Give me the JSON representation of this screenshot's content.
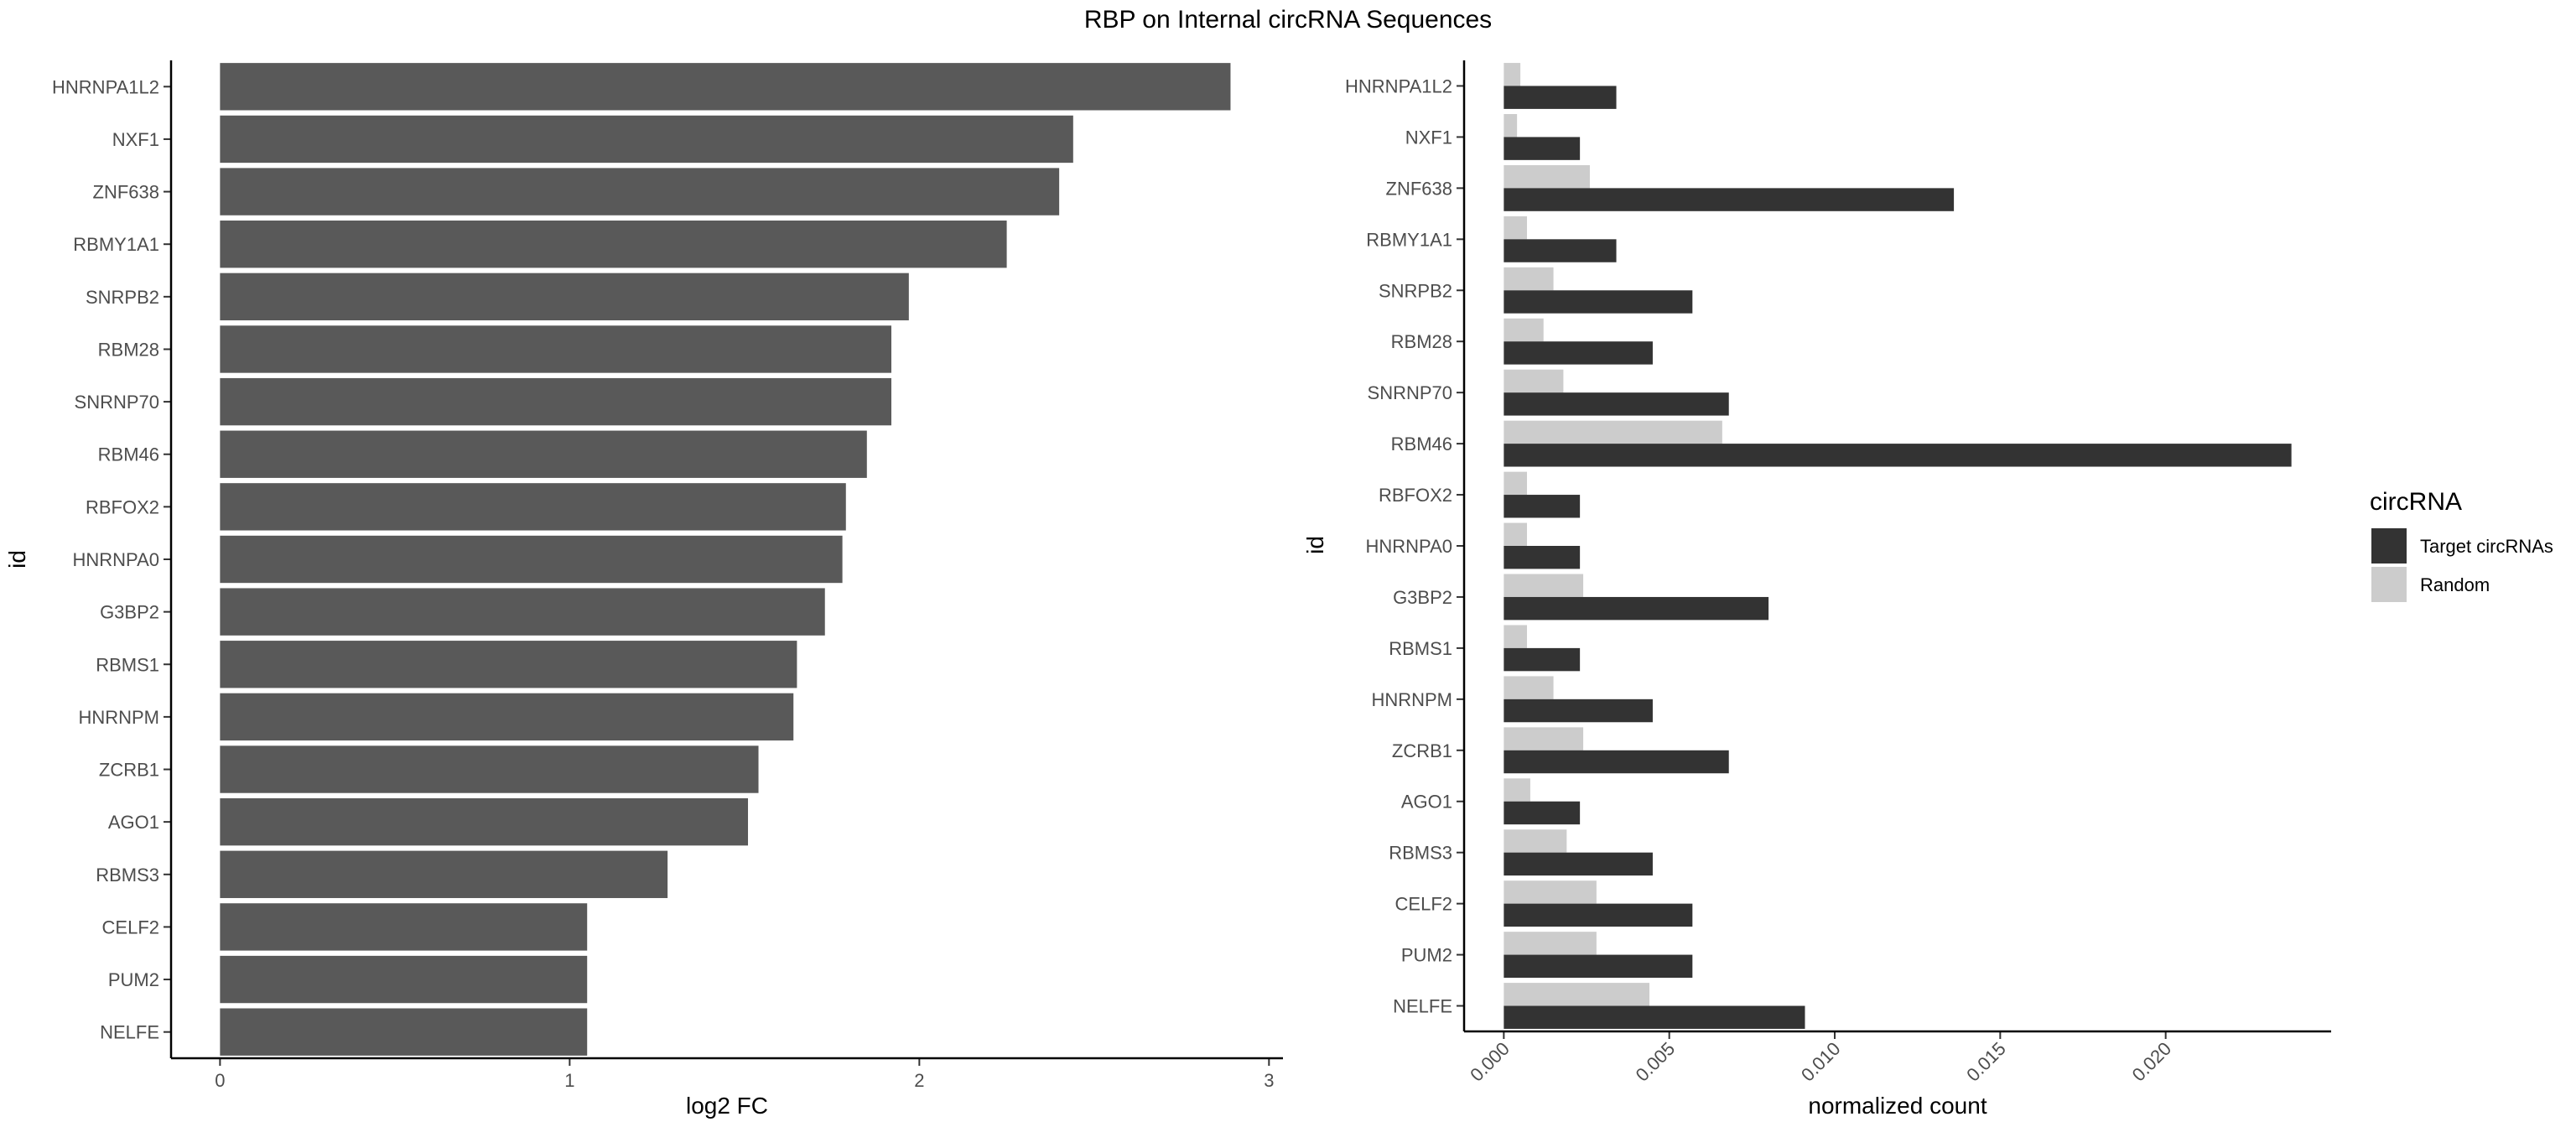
{
  "title": "RBP on Internal circRNA Sequences",
  "chart_data": [
    {
      "type": "bar",
      "orientation": "horizontal",
      "categories": [
        "HNRNPA1L2",
        "NXF1",
        "ZNF638",
        "RBMY1A1",
        "SNRPB2",
        "RBM28",
        "SNRNP70",
        "RBM46",
        "RBFOX2",
        "HNRNPA0",
        "G3BP2",
        "RBMS1",
        "HNRNPM",
        "ZCRB1",
        "AGO1",
        "RBMS3",
        "CELF2",
        "PUM2",
        "NELFE"
      ],
      "values": [
        2.89,
        2.44,
        2.4,
        2.25,
        1.97,
        1.92,
        1.92,
        1.85,
        1.79,
        1.78,
        1.73,
        1.65,
        1.64,
        1.54,
        1.51,
        1.28,
        1.05,
        1.05,
        1.05
      ],
      "xlabel": "log2 FC",
      "ylabel": "id",
      "xlim": [
        -0.14,
        3.04
      ],
      "xticks": [
        "0",
        "1",
        "2",
        "3"
      ],
      "bar_color": "#595959",
      "grid": false
    },
    {
      "type": "bar",
      "orientation": "horizontal",
      "position": "dodge",
      "categories": [
        "HNRNPA1L2",
        "NXF1",
        "ZNF638",
        "RBMY1A1",
        "SNRPB2",
        "RBM28",
        "SNRNP70",
        "RBM46",
        "RBFOX2",
        "HNRNPA0",
        "G3BP2",
        "RBMS1",
        "HNRNPM",
        "ZCRB1",
        "AGO1",
        "RBMS3",
        "CELF2",
        "PUM2",
        "NELFE"
      ],
      "series": [
        {
          "name": "Target circRNAs",
          "color": "#333333",
          "values": [
            0.0034,
            0.0023,
            0.0136,
            0.0034,
            0.0057,
            0.0045,
            0.0068,
            0.0238,
            0.0023,
            0.0023,
            0.008,
            0.0023,
            0.0045,
            0.0068,
            0.0023,
            0.0045,
            0.0057,
            0.0057,
            0.0091
          ]
        },
        {
          "name": "Random",
          "color": "#cccccc",
          "values": [
            0.0005,
            0.0004,
            0.0026,
            0.0007,
            0.0015,
            0.0012,
            0.0018,
            0.0066,
            0.0007,
            0.0007,
            0.0024,
            0.0007,
            0.0015,
            0.0024,
            0.0008,
            0.0019,
            0.0028,
            0.0028,
            0.0044
          ]
        }
      ],
      "xlabel": "normalized count",
      "ylabel": "id",
      "xlim": [
        -0.0012,
        0.025
      ],
      "xticks": [
        "0.000",
        "0.005",
        "0.010",
        "0.015",
        "0.020"
      ],
      "legend": {
        "title": "circRNA",
        "position": "right"
      },
      "grid": false
    }
  ]
}
